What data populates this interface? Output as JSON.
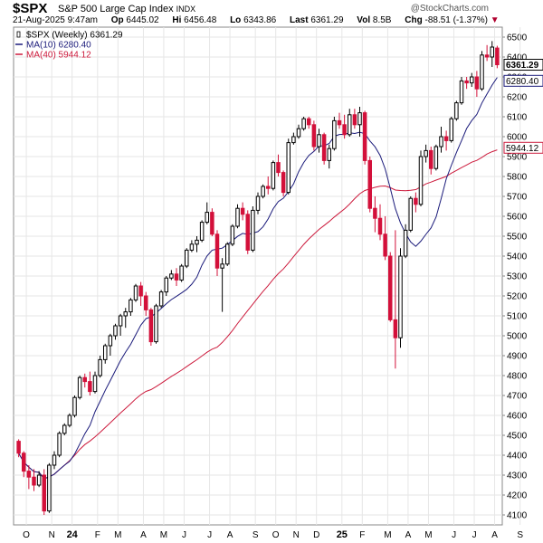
{
  "header": {
    "symbol": "$SPX",
    "name": "S&P 500 Large Cap Index",
    "exchange": "INDX",
    "copyright": "@StockCharts.com",
    "datetime": "21-Aug-2025 9:47am",
    "open_label": "Op",
    "open": "6445.02",
    "high_label": "Hi",
    "high": "6456.48",
    "low_label": "Lo",
    "low": "6343.86",
    "last_label": "Last",
    "last": "6361.29",
    "vol_label": "Vol",
    "vol": "8.5B",
    "chg_label": "Chg",
    "chg": "-88.51 (-1.37%)",
    "chg_arrow": "▼"
  },
  "colors": {
    "up": "#000000",
    "down": "#d3103a",
    "ma10": "#1a1a7a",
    "ma40": "#cc1a3c",
    "grid": "#e6e6e6"
  },
  "chart_data": {
    "type": "candlestick",
    "legend": [
      {
        "key": "price",
        "text": "$SPX (Weekly) 6361.29",
        "color": "#000000"
      },
      {
        "key": "ma10",
        "text": "MA(10) 6280.40",
        "color": "#1a1a7a"
      },
      {
        "key": "ma40",
        "text": "MA(40) 5944.12",
        "color": "#cc1a3c"
      }
    ],
    "ylim": [
      4050,
      6550
    ],
    "yticks": [
      4100,
      4200,
      4300,
      4400,
      4500,
      4600,
      4700,
      4800,
      4900,
      5000,
      5100,
      5200,
      5300,
      5400,
      5500,
      5600,
      5700,
      5800,
      5900,
      6000,
      6100,
      6200,
      6300,
      6400,
      6500
    ],
    "x_labels": [
      "O",
      "N",
      "24",
      "F",
      "M",
      "A",
      "M",
      "J",
      "J",
      "A",
      "S",
      "O",
      "N",
      "D",
      "25",
      "F",
      "M",
      "A",
      "M",
      "J",
      "J",
      "A",
      "S"
    ],
    "x_label_weeks": [
      2,
      7,
      11,
      16,
      20,
      25,
      29,
      33,
      38,
      42,
      47,
      51,
      55,
      59,
      64,
      68,
      73,
      77,
      81,
      86,
      90,
      94,
      99
    ],
    "bold_labels": [
      "24",
      "25"
    ],
    "price_tags": [
      {
        "value": "6361.29",
        "y": 6361.29,
        "style": "dark"
      },
      {
        "value": "6280.40",
        "y": 6280.4,
        "style": "ma10"
      },
      {
        "value": "5944.12",
        "y": 5944.12,
        "style": "ma40"
      }
    ],
    "candles": [
      [
        4470,
        4480,
        4390,
        4410
      ],
      [
        4410,
        4420,
        4290,
        4320
      ],
      [
        4320,
        4350,
        4230,
        4290
      ],
      [
        4290,
        4330,
        4220,
        4250
      ],
      [
        4250,
        4320,
        4240,
        4300
      ],
      [
        4300,
        4330,
        4100,
        4120
      ],
      [
        4120,
        4360,
        4110,
        4350
      ],
      [
        4350,
        4420,
        4330,
        4400
      ],
      [
        4400,
        4520,
        4390,
        4510
      ],
      [
        4510,
        4560,
        4500,
        4550
      ],
      [
        4550,
        4610,
        4540,
        4600
      ],
      [
        4600,
        4700,
        4590,
        4690
      ],
      [
        4690,
        4800,
        4680,
        4790
      ],
      [
        4790,
        4810,
        4740,
        4770
      ],
      [
        4770,
        4820,
        4700,
        4720
      ],
      [
        4720,
        4820,
        4710,
        4800
      ],
      [
        4800,
        4900,
        4790,
        4880
      ],
      [
        4880,
        4960,
        4860,
        4950
      ],
      [
        4950,
        5010,
        4900,
        5000
      ],
      [
        5000,
        5060,
        4980,
        5050
      ],
      [
        5050,
        5110,
        5000,
        5100
      ],
      [
        5100,
        5140,
        5040,
        5120
      ],
      [
        5120,
        5190,
        5100,
        5180
      ],
      [
        5180,
        5260,
        5170,
        5250
      ],
      [
        5250,
        5270,
        5150,
        5200
      ],
      [
        5200,
        5220,
        5100,
        5130
      ],
      [
        5130,
        5140,
        4950,
        4970
      ],
      [
        4970,
        5160,
        4960,
        5150
      ],
      [
        5150,
        5230,
        5140,
        5220
      ],
      [
        5220,
        5300,
        5200,
        5290
      ],
      [
        5290,
        5330,
        5280,
        5310
      ],
      [
        5310,
        5340,
        5250,
        5280
      ],
      [
        5280,
        5360,
        5270,
        5350
      ],
      [
        5350,
        5440,
        5340,
        5430
      ],
      [
        5430,
        5480,
        5420,
        5460
      ],
      [
        5460,
        5500,
        5420,
        5480
      ],
      [
        5480,
        5580,
        5470,
        5570
      ],
      [
        5570,
        5670,
        5560,
        5620
      ],
      [
        5620,
        5640,
        5500,
        5510
      ],
      [
        5510,
        5530,
        5300,
        5340
      ],
      [
        5340,
        5390,
        5120,
        5360
      ],
      [
        5360,
        5470,
        5350,
        5460
      ],
      [
        5460,
        5560,
        5450,
        5550
      ],
      [
        5550,
        5660,
        5540,
        5640
      ],
      [
        5640,
        5670,
        5580,
        5610
      ],
      [
        5610,
        5630,
        5410,
        5430
      ],
      [
        5430,
        5650,
        5420,
        5630
      ],
      [
        5630,
        5720,
        5610,
        5700
      ],
      [
        5700,
        5760,
        5690,
        5750
      ],
      [
        5750,
        5800,
        5710,
        5740
      ],
      [
        5740,
        5880,
        5730,
        5870
      ],
      [
        5870,
        5910,
        5800,
        5820
      ],
      [
        5820,
        5830,
        5700,
        5720
      ],
      [
        5720,
        5990,
        5710,
        5970
      ],
      [
        5970,
        6020,
        5960,
        6000
      ],
      [
        6000,
        6060,
        5990,
        6040
      ],
      [
        6040,
        6100,
        6030,
        6090
      ],
      [
        6090,
        6100,
        6040,
        6060
      ],
      [
        6060,
        6080,
        5930,
        5950
      ],
      [
        5950,
        6040,
        5920,
        6010
      ],
      [
        6010,
        6020,
        5860,
        5880
      ],
      [
        5880,
        5960,
        5840,
        5940
      ],
      [
        5940,
        6100,
        5930,
        6080
      ],
      [
        6080,
        6120,
        6040,
        6060
      ],
      [
        6060,
        6110,
        5990,
        6010
      ],
      [
        6010,
        6140,
        6000,
        6110
      ],
      [
        6110,
        6140,
        6040,
        6060
      ],
      [
        6060,
        6150,
        6000,
        6120
      ],
      [
        6120,
        6130,
        5860,
        5880
      ],
      [
        5880,
        5900,
        5620,
        5640
      ],
      [
        5640,
        5700,
        5520,
        5590
      ],
      [
        5590,
        5660,
        5480,
        5510
      ],
      [
        5510,
        5600,
        5380,
        5400
      ],
      [
        5400,
        5420,
        5070,
        5080
      ],
      [
        5080,
        5530,
        4835,
        4990
      ],
      [
        4990,
        5440,
        4940,
        5400
      ],
      [
        5400,
        5560,
        5390,
        5530
      ],
      [
        5530,
        5700,
        5520,
        5690
      ],
      [
        5690,
        5720,
        5620,
        5660
      ],
      [
        5660,
        5930,
        5650,
        5900
      ],
      [
        5900,
        5960,
        5870,
        5930
      ],
      [
        5930,
        5950,
        5810,
        5840
      ],
      [
        5840,
        5960,
        5830,
        5950
      ],
      [
        5950,
        6050,
        5920,
        6000
      ],
      [
        6000,
        6030,
        5930,
        5980
      ],
      [
        5980,
        6100,
        5970,
        6090
      ],
      [
        6090,
        6180,
        6080,
        6170
      ],
      [
        6170,
        6300,
        6160,
        6280
      ],
      [
        6280,
        6300,
        6240,
        6270
      ],
      [
        6270,
        6320,
        6250,
        6300
      ],
      [
        6300,
        6330,
        6200,
        6240
      ],
      [
        6240,
        6430,
        6230,
        6410
      ],
      [
        6410,
        6460,
        6380,
        6400
      ],
      [
        6400,
        6480,
        6350,
        6450
      ],
      [
        6445.02,
        6456.48,
        6343.86,
        6361.29
      ]
    ]
  }
}
